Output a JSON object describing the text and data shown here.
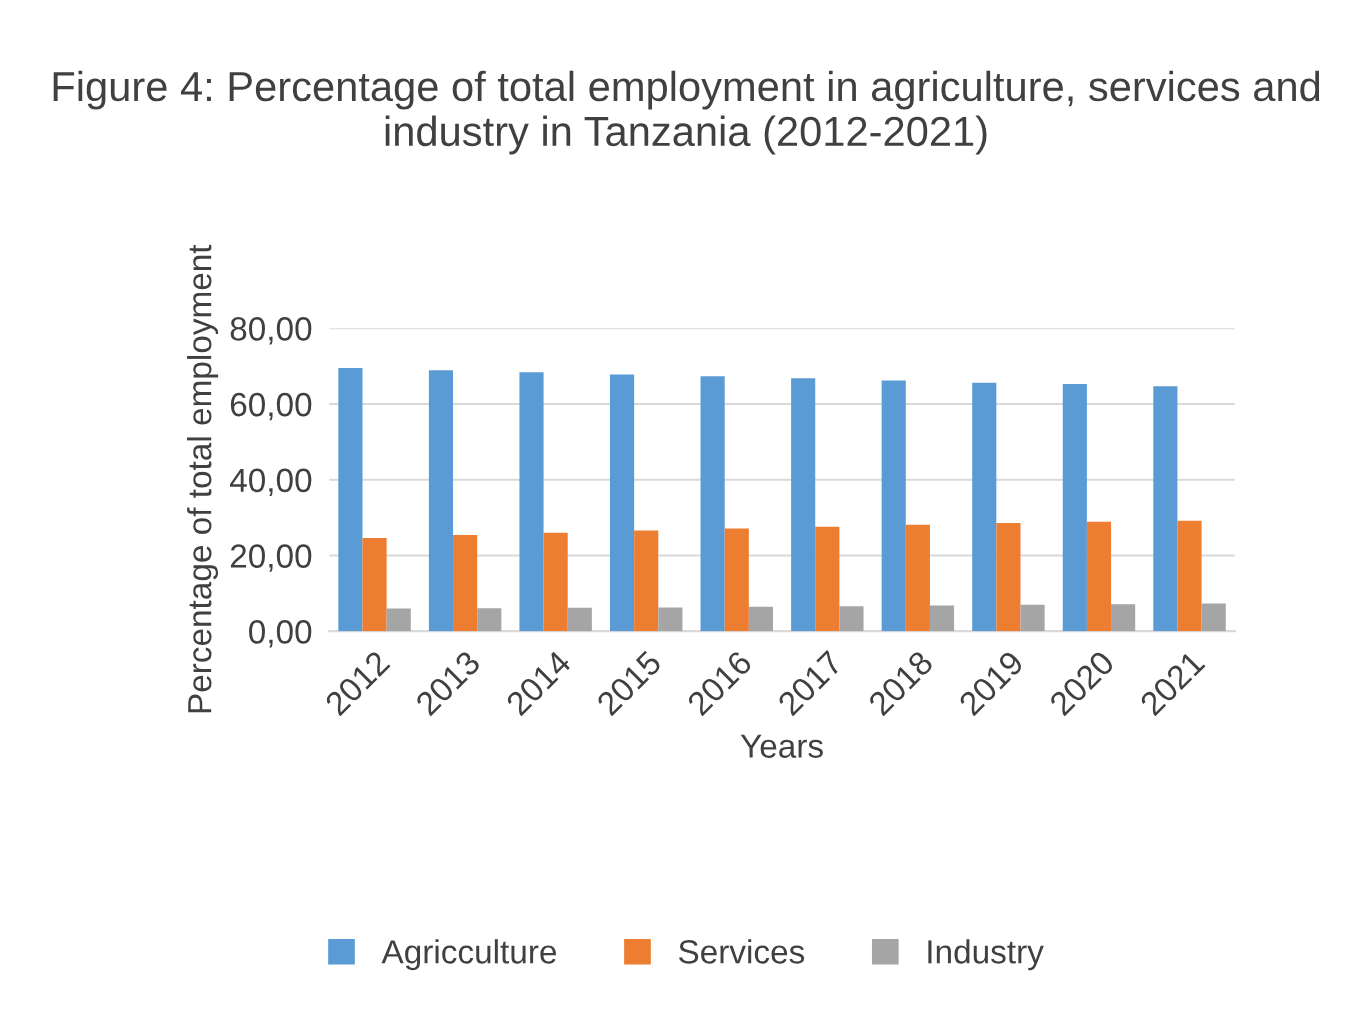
{
  "chart_data": {
    "type": "bar",
    "title": "Figure 4: Percentage of total employment in agriculture, services and industry in Tanzania (2012-2021)",
    "xlabel": "Years",
    "ylabel": "Percentage of total employment",
    "categories": [
      "2012",
      "2013",
      "2014",
      "2015",
      "2016",
      "2017",
      "2018",
      "2019",
      "2020",
      "2021"
    ],
    "series": [
      {
        "name": "Agricculture",
        "color": "#5b9bd5",
        "values": [
          69.5,
          68.9,
          68.4,
          67.8,
          67.3,
          66.8,
          66.2,
          65.6,
          65.3,
          64.7
        ]
      },
      {
        "name": "Services",
        "color": "#ed7d31",
        "values": [
          24.6,
          25.4,
          26.0,
          26.6,
          27.1,
          27.6,
          28.1,
          28.6,
          28.9,
          29.2
        ]
      },
      {
        "name": "Industry",
        "color": "#a5a5a5",
        "values": [
          6.0,
          6.1,
          6.2,
          6.3,
          6.5,
          6.6,
          6.8,
          7.0,
          7.1,
          7.3
        ]
      }
    ],
    "ylim": [
      0,
      80
    ],
    "yticks": [
      {
        "value": 0,
        "label": "0,00"
      },
      {
        "value": 20,
        "label": "20,00"
      },
      {
        "value": 40,
        "label": "40,00"
      },
      {
        "value": 60,
        "label": "60,00"
      },
      {
        "value": 80,
        "label": "80,00"
      }
    ],
    "grid": "y",
    "legend": "bottom"
  }
}
